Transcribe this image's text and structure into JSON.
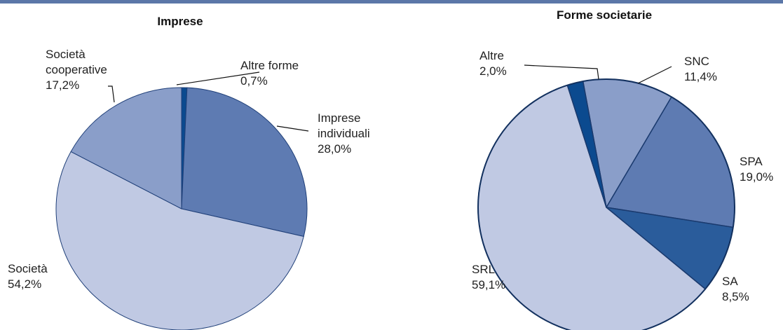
{
  "chart_data": [
    {
      "type": "pie",
      "title": "Imprese",
      "slices": [
        {
          "name": "Altre forme",
          "value_label": "0,7%",
          "value": 0.7,
          "color": "#0b4a8f"
        },
        {
          "name": "Imprese individuali",
          "value_label": "28,0%",
          "value": 28.0,
          "color": "#5e7bb2"
        },
        {
          "name": "Società",
          "value_label": "54,2%",
          "value": 54.2,
          "color": "#c0c9e3"
        },
        {
          "name": "Società cooperative",
          "value_label": "17,2%",
          "value": 17.2,
          "color": "#8a9ec9"
        }
      ]
    },
    {
      "type": "pie",
      "title": "Forme societarie",
      "slices": [
        {
          "name": "SNC",
          "value_label": "11,4%",
          "value": 11.4,
          "color": "#8a9ec9"
        },
        {
          "name": "SPA",
          "value_label": "19,0%",
          "value": 19.0,
          "color": "#5e7bb2"
        },
        {
          "name": "SA",
          "value_label": "8,5%",
          "value": 8.5,
          "color": "#2a5c9b"
        },
        {
          "name": "SRL",
          "value_label": "59,1%",
          "value": 59.1,
          "color": "#c0c9e3"
        },
        {
          "name": "Altre",
          "value_label": "2,0%",
          "value": 2.0,
          "color": "#0b4a8f"
        }
      ]
    }
  ],
  "label_text": {
    "c0": [
      [
        "Altre forme",
        "0,7%"
      ],
      [
        "Imprese",
        "individuali",
        "28,0%"
      ],
      [
        "Società",
        "54,2%"
      ],
      [
        "Società",
        "cooperative",
        "17,2%"
      ]
    ],
    "c1": [
      [
        "SNC",
        "11,4%"
      ],
      [
        "SPA",
        "19,0%"
      ],
      [
        "SA",
        "8,5%"
      ],
      [
        "SRL",
        "59,1%"
      ],
      [
        "Altre",
        "2,0%"
      ]
    ]
  }
}
